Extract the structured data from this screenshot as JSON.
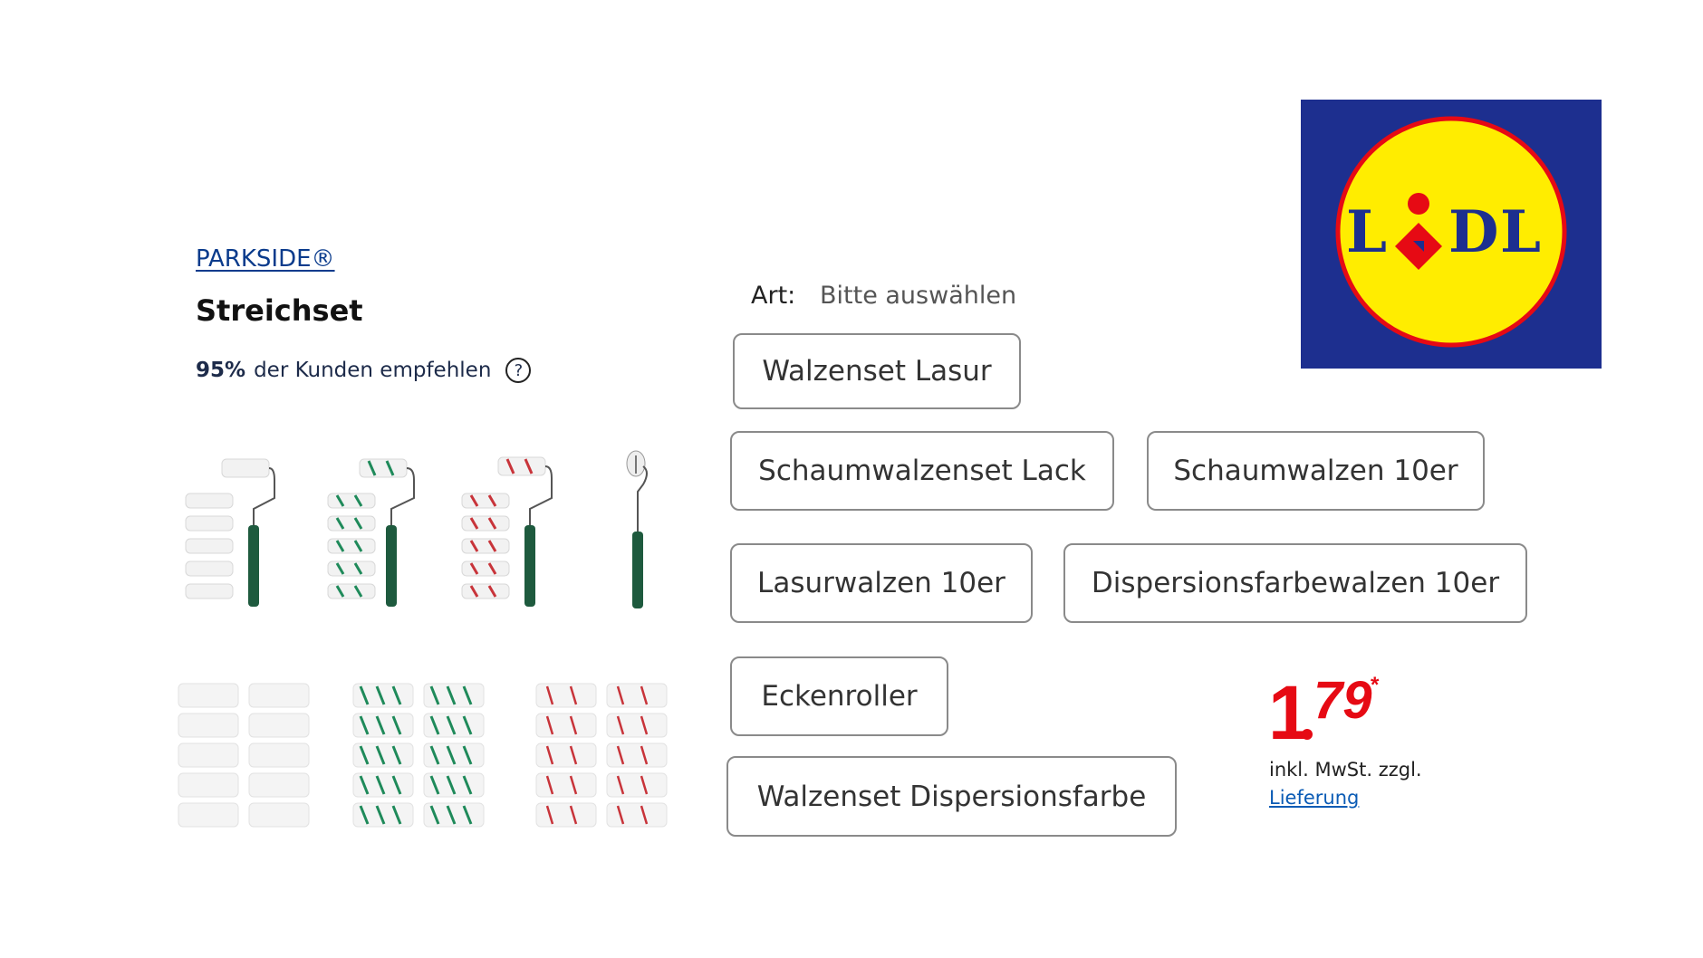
{
  "product": {
    "brand": "PARKSIDE®",
    "title": "Streichset",
    "recommend_pct": "95%",
    "recommend_text": "der Kunden empfehlen",
    "help_symbol": "?"
  },
  "variant_images": [
    {
      "name": "roller-set-white",
      "color": "#ffffff"
    },
    {
      "name": "roller-set-green-stripe",
      "color": "#1f8a5a"
    },
    {
      "name": "roller-set-red-stripe",
      "color": "#c8343a"
    },
    {
      "name": "corner-roller",
      "color": "#dddddd"
    },
    {
      "name": "rollers-10-white",
      "color": "#ffffff"
    },
    {
      "name": "rollers-10-green-stripe",
      "color": "#1f8a5a"
    },
    {
      "name": "rollers-10-red-stripe",
      "color": "#c8343a"
    }
  ],
  "selector": {
    "label": "Art:",
    "value": "Bitte auswählen",
    "options": [
      "Walzenset Lasur",
      "Schaumwalzenset Lack",
      "Schaumwalzen 10er",
      "Lasurwalzen 10er",
      "Dispersionsfarbewalzen 10er",
      "Eckenroller",
      "Walzenset Dispersionsfarbe"
    ]
  },
  "price": {
    "integer": "1",
    "decimal": "79",
    "asterisk": "*",
    "tax_note": "inkl. MwSt. zzgl.",
    "delivery_link": "Lieferung",
    "color": "#e60a14"
  },
  "logo": {
    "text": "LIDL",
    "bg": "#1d2f8f",
    "circle": "#ffed00",
    "ring": "#e60a14",
    "letters": "#1d2f8f"
  }
}
